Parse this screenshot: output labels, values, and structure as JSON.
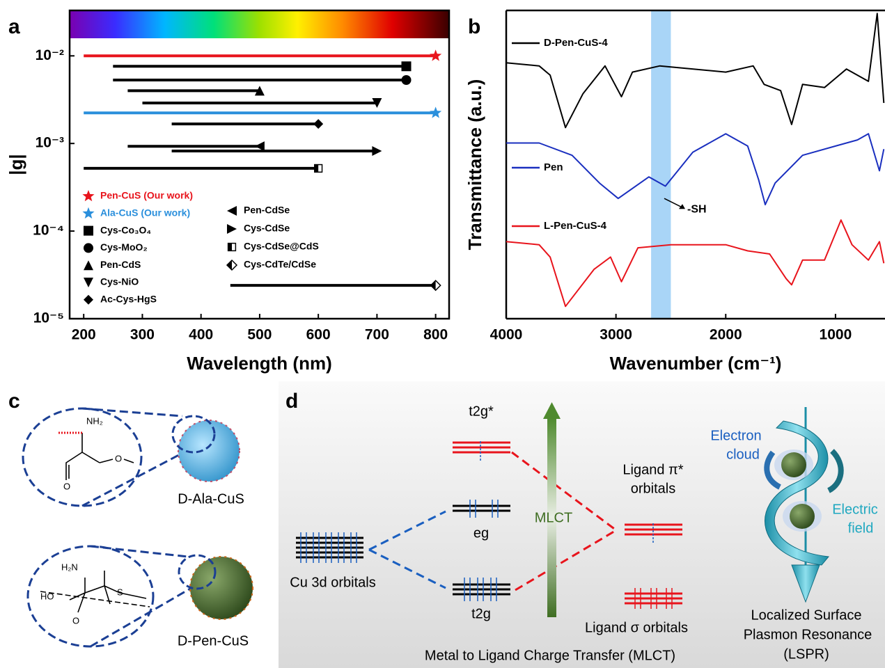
{
  "chart_data": [
    {
      "type": "line",
      "label": "a",
      "xlabel": "Wavelength (nm)",
      "ylabel": "|g|",
      "yscale": "log",
      "xlim": [
        176,
        823
      ],
      "ylim": [
        1e-05,
        0.033
      ],
      "xticks": [
        200,
        300,
        400,
        500,
        600,
        700,
        800
      ],
      "yticks": [
        {
          "value": 0.01,
          "label": "10⁻²"
        },
        {
          "value": 0.001,
          "label": "10⁻³"
        },
        {
          "value": 0.0001,
          "label": "10⁻⁴"
        },
        {
          "value": 1e-05,
          "label": "10⁻⁵"
        }
      ],
      "series": [
        {
          "name": "Pen-CuS (Our work)",
          "color": "#e8141c",
          "marker": "star",
          "x": [
            200,
            800
          ],
          "values": [
            0.01,
            0.01
          ]
        },
        {
          "name": "Ala-CuS (Our work)",
          "color": "#2a8fdc",
          "marker": "star",
          "x": [
            200,
            800
          ],
          "values": [
            0.00223,
            0.00223
          ]
        },
        {
          "name": "Cys-Co₃O₄",
          "color": "#000000",
          "marker": "square",
          "x": [
            250,
            750
          ],
          "values": [
            0.0076,
            0.0076
          ]
        },
        {
          "name": "Cys-MoO₂",
          "color": "#000000",
          "marker": "circle",
          "x": [
            250,
            750
          ],
          "values": [
            0.0053,
            0.0053
          ]
        },
        {
          "name": "Pen-CdS",
          "color": "#000000",
          "marker": "triangle-up",
          "x": [
            275,
            500
          ],
          "values": [
            0.004,
            0.004
          ]
        },
        {
          "name": "Cys-NiO",
          "color": "#000000",
          "marker": "triangle-down",
          "x": [
            300,
            700
          ],
          "values": [
            0.0029,
            0.0029
          ]
        },
        {
          "name": "Ac-Cys-HgS",
          "color": "#000000",
          "marker": "diamond",
          "x": [
            350,
            600
          ],
          "values": [
            0.00167,
            0.00167
          ]
        },
        {
          "name": "Pen-CdSe",
          "color": "#000000",
          "marker": "triangle-left",
          "x": [
            275,
            500
          ],
          "values": [
            0.00093,
            0.00093
          ]
        },
        {
          "name": "Cys-CdSe",
          "color": "#000000",
          "marker": "triangle-right",
          "x": [
            350,
            700
          ],
          "values": [
            0.00082,
            0.00082
          ]
        },
        {
          "name": "Cys-CdSe@CdS",
          "color": "#000000",
          "marker": "half-square",
          "x": [
            200,
            600
          ],
          "values": [
            0.00052,
            0.00052
          ]
        },
        {
          "name": "Cys-CdTe/CdSe",
          "color": "#000000",
          "marker": "half-diamond",
          "x": [
            450,
            800
          ],
          "values": [
            2.4e-05,
            2.4e-05
          ]
        }
      ]
    },
    {
      "type": "line",
      "label": "b",
      "xlabel": "Wavenumber (cm⁻¹)",
      "ylabel": "Transmittance (a.u.)",
      "xlim": [
        4000,
        549
      ],
      "ylim": [
        0,
        10
      ],
      "xticks": [
        4000,
        3000,
        2000,
        1000
      ],
      "band": [
        2680,
        2500
      ],
      "band_color": "#a9d5f7",
      "annotation": {
        "text": "-SH",
        "x": 2560,
        "y": 3.9
      },
      "series": [
        {
          "name": "D-Pen-CuS-4",
          "color": "#000000",
          "x": [
            4000,
            3700,
            3600,
            3460,
            3300,
            3100,
            2950,
            2850,
            2600,
            2000,
            1750,
            1650,
            1500,
            1400,
            1300,
            1100,
            1000,
            900,
            700,
            620,
            560
          ],
          "values": [
            8.3,
            8.2,
            7.9,
            6.2,
            7.3,
            8.2,
            7.2,
            8.0,
            8.2,
            8.0,
            8.2,
            7.6,
            7.4,
            6.3,
            7.6,
            7.5,
            7.8,
            8.1,
            7.7,
            9.9,
            7.0
          ]
        },
        {
          "name": "Pen",
          "color": "#1a2fbf",
          "x": [
            4000,
            3700,
            3400,
            3150,
            2980,
            2700,
            2550,
            2300,
            2000,
            1800,
            1700,
            1640,
            1550,
            1300,
            1000,
            800,
            700,
            600,
            560
          ],
          "values": [
            5.7,
            5.7,
            5.3,
            4.4,
            3.9,
            4.6,
            4.3,
            5.4,
            6.0,
            5.6,
            4.5,
            3.7,
            4.4,
            5.3,
            5.6,
            5.8,
            6.0,
            4.8,
            5.5
          ]
        },
        {
          "name": "L-Pen-CuS-4",
          "color": "#e8141c",
          "x": [
            4000,
            3700,
            3600,
            3460,
            3200,
            3050,
            2950,
            2800,
            2500,
            2000,
            1800,
            1600,
            1450,
            1400,
            1300,
            1100,
            950,
            850,
            700,
            600,
            560
          ],
          "values": [
            2.5,
            2.4,
            2.0,
            0.4,
            1.6,
            2.0,
            1.2,
            2.3,
            2.4,
            2.4,
            2.2,
            2.1,
            1.3,
            1.1,
            1.9,
            1.9,
            3.2,
            2.4,
            1.9,
            2.5,
            1.8
          ]
        }
      ]
    }
  ],
  "panel_c": {
    "label": "c",
    "molecule_1": {
      "atoms": [
        "NH₂",
        "O",
        "O"
      ]
    },
    "particle_1": "D-Ala-CuS",
    "molecule_2": {
      "atoms": [
        "H₂N",
        "HO",
        "O",
        "S"
      ]
    },
    "particle_2": "D-Pen-CuS"
  },
  "panel_d": {
    "label": "d",
    "levels": {
      "t2g_star": "t2g*",
      "eg": "eg",
      "t2g": "t2g",
      "cu3d": "Cu 3d orbitals",
      "ligand_pi": [
        "Ligand π*",
        "orbitals"
      ],
      "ligand_sigma": "Ligand σ orbitals"
    },
    "arrow": "MLCT",
    "caption": "Metal to Ligand Charge Transfer (MLCT)",
    "lspr": {
      "electron_cloud": [
        "Electron",
        "cloud"
      ],
      "electric_field": [
        "Electric",
        "field"
      ],
      "caption": [
        "Localized Surface",
        "Plasmon Resonance",
        "(LSPR)"
      ]
    }
  }
}
